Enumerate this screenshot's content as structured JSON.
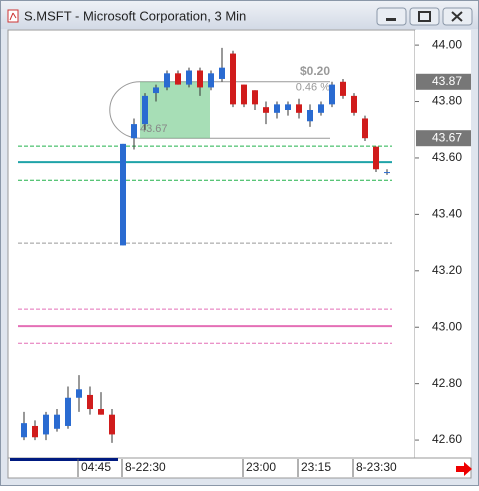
{
  "window": {
    "title": "S.MSFT - Microsoft Corporation, 3 Min"
  },
  "chart_data": {
    "type": "candlestick",
    "categories": [
      null,
      null,
      null,
      null,
      null,
      "04:45",
      null,
      null,
      null,
      "8-22:30",
      null,
      null,
      null,
      null,
      null,
      null,
      null,
      null,
      null,
      null,
      "23:00",
      null,
      null,
      null,
      null,
      "23:15",
      null,
      null,
      null,
      null,
      "8-23:30",
      null,
      null,
      null
    ],
    "open": [
      42.61,
      42.65,
      42.62,
      42.64,
      42.65,
      42.75,
      42.76,
      42.71,
      42.69,
      43.29,
      43.67,
      43.72,
      43.83,
      43.85,
      43.9,
      43.86,
      43.91,
      43.85,
      43.88,
      43.97,
      43.86,
      43.84,
      43.78,
      43.76,
      43.77,
      43.79,
      43.73,
      43.76,
      43.79,
      43.87,
      43.82,
      43.74,
      43.64,
      43.55
    ],
    "high": [
      42.7,
      42.67,
      42.7,
      42.71,
      42.79,
      42.83,
      42.79,
      42.77,
      42.71,
      43.65,
      43.74,
      43.83,
      43.86,
      43.91,
      43.91,
      43.92,
      43.92,
      43.91,
      43.99,
      43.98,
      43.86,
      43.84,
      43.8,
      43.8,
      43.8,
      43.81,
      43.79,
      43.8,
      43.87,
      43.88,
      43.83,
      43.75,
      43.64,
      43.56
    ],
    "low": [
      42.6,
      42.6,
      42.6,
      42.63,
      42.64,
      42.7,
      42.69,
      42.69,
      42.59,
      43.29,
      43.63,
      43.7,
      43.8,
      43.84,
      43.86,
      43.85,
      43.82,
      43.84,
      43.87,
      43.78,
      43.78,
      43.77,
      43.72,
      43.74,
      43.75,
      43.74,
      43.71,
      43.75,
      43.78,
      43.81,
      43.75,
      43.66,
      43.55,
      43.54
    ],
    "close": [
      42.66,
      42.61,
      42.69,
      42.69,
      42.75,
      42.78,
      42.71,
      42.69,
      42.62,
      43.65,
      43.72,
      43.82,
      43.85,
      43.9,
      43.86,
      43.91,
      43.85,
      43.9,
      43.92,
      43.79,
      43.79,
      43.79,
      43.76,
      43.79,
      43.79,
      43.76,
      43.77,
      43.79,
      43.86,
      43.82,
      43.76,
      43.67,
      43.56,
      43.55
    ],
    "up_color": "#2a6bd1",
    "down_color": "#d01c1c",
    "ylim": [
      42.54,
      44.05
    ],
    "yticks": [
      {
        "value": 44,
        "label": "44.00"
      },
      43.8,
      43.6,
      43.4,
      43.2,
      {
        "value": 43,
        "label": "43.00"
      },
      42.8,
      42.6
    ],
    "price_markers": [
      43.87,
      43.67
    ],
    "levels": [
      {
        "value": 43.642,
        "color": "#22b24c",
        "style": "dashed"
      },
      {
        "value": 43.585,
        "color": "#1fa3a8",
        "style": "solid"
      },
      {
        "value": 43.521,
        "color": "#22b24c",
        "style": "dashed"
      },
      {
        "value": 43.298,
        "color": "#999999",
        "style": "dashed"
      },
      {
        "value": 43.064,
        "color": "#e46fb6",
        "style": "dashed"
      },
      {
        "value": 43.004,
        "color": "#e46fb6",
        "style": "solid"
      },
      {
        "value": 42.943,
        "color": "#e46fb6",
        "style": "dashed"
      }
    ],
    "measure": {
      "low": 43.67,
      "high": 43.87,
      "change": "$0.20",
      "percent": "0.46 %",
      "low_label": "43.67"
    }
  }
}
